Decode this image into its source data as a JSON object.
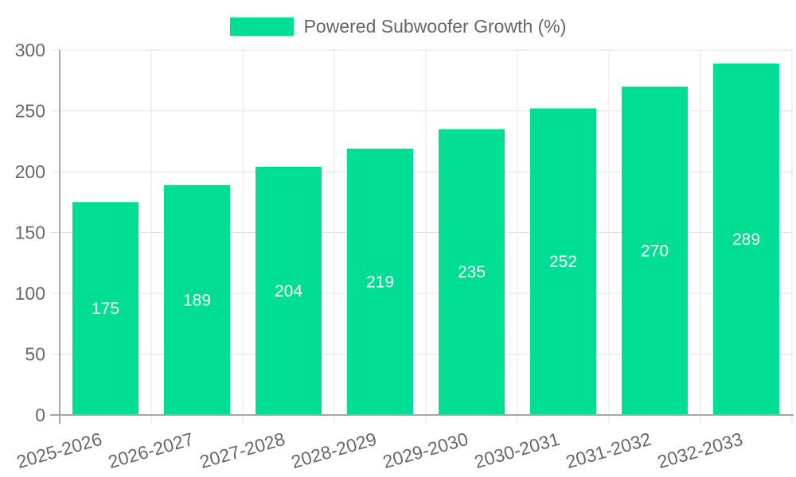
{
  "legend": {
    "label": "Powered Subwoofer Growth (%)"
  },
  "colors": {
    "bar": "#00DE94",
    "grid": "#e3e3e3",
    "axis": "#a6a6a6",
    "tick_label": "#686868",
    "legend_text": "#666666",
    "bar_label": "#ffffff",
    "background": "#ffffff"
  },
  "chart_data": {
    "type": "bar",
    "title": "Powered Subwoofer Growth (%)",
    "series_name": "Powered Subwoofer Growth (%)",
    "categories": [
      "2025-2026",
      "2026-2027",
      "2027-2028",
      "2028-2029",
      "2029-2030",
      "2030-2031",
      "2031-2032",
      "2032-2033"
    ],
    "values": [
      175,
      189,
      204,
      219,
      235,
      252,
      270,
      289
    ],
    "xlabel": "",
    "ylabel": "",
    "ylim": [
      0,
      300
    ],
    "yticks": [
      0,
      50,
      100,
      150,
      200,
      250,
      300
    ],
    "grid": true,
    "legend_position": "top",
    "bar_value_labels": "centered-white",
    "x_label_rotation_deg": -16
  }
}
